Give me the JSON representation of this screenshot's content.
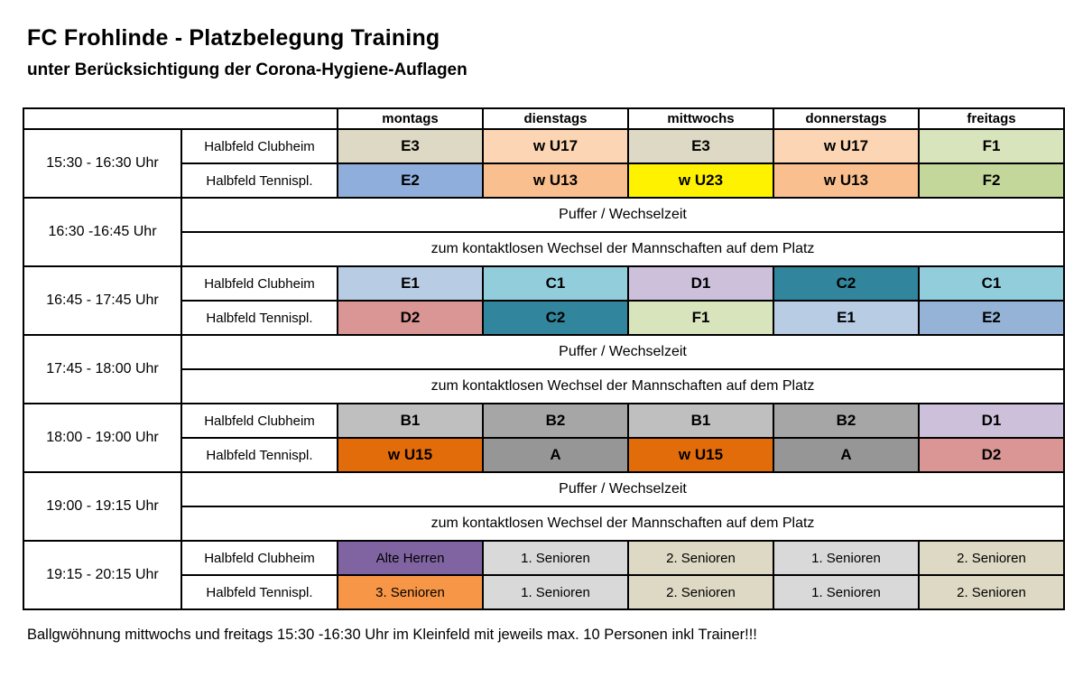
{
  "title": "FC Frohlinde - Platzbelegung Training",
  "subtitle": "unter Berücksichtigung der Corona-Hygiene-Auflagen",
  "footer": "Ballgwöhnung mittwochs und freitags 15:30 -16:30 Uhr im Kleinfeld mit jeweils max. 10 Personen inkl Trainer!!!",
  "days": [
    "montags",
    "dienstags",
    "mittwochs",
    "donnerstags",
    "freitags"
  ],
  "field_labels": [
    "Halbfeld Clubheim",
    "Halbfeld Tennispl."
  ],
  "puffer": {
    "line1": "Puffer / Wechselzeit",
    "line2": "zum kontaktlosen Wechsel der Mannschaften auf dem Platz"
  },
  "blocks": [
    {
      "type": "training",
      "bold": true,
      "time": "15:30 - 16:30 Uhr",
      "rows": [
        [
          {
            "label": "E3",
            "color": "#DDD9C4"
          },
          {
            "label": "w U17",
            "color": "#FCD5B4"
          },
          {
            "label": "E3",
            "color": "#DDD9C4"
          },
          {
            "label": "w U17",
            "color": "#FCD5B4"
          },
          {
            "label": "F1",
            "color": "#D8E4BC"
          }
        ],
        [
          {
            "label": "E2",
            "color": "#8FAEDC"
          },
          {
            "label": "w U13",
            "color": "#FABF8F"
          },
          {
            "label": "w U23",
            "color": "#FFF200"
          },
          {
            "label": "w U13",
            "color": "#FABF8F"
          },
          {
            "label": "F2",
            "color": "#C4D79B"
          }
        ]
      ]
    },
    {
      "type": "puffer",
      "time": "16:30 -16:45 Uhr"
    },
    {
      "type": "training",
      "bold": true,
      "time": "16:45 - 17:45 Uhr",
      "rows": [
        [
          {
            "label": "E1",
            "color": "#B8CCE4"
          },
          {
            "label": "C1",
            "color": "#92CDDC"
          },
          {
            "label": "D1",
            "color": "#CCC0DA"
          },
          {
            "label": "C2",
            "color": "#31859C"
          },
          {
            "label": "C1",
            "color": "#92CDDC"
          }
        ],
        [
          {
            "label": "D2",
            "color": "#D99694"
          },
          {
            "label": "C2",
            "color": "#31859C"
          },
          {
            "label": "F1",
            "color": "#D8E4BC"
          },
          {
            "label": "E1",
            "color": "#B8CCE4"
          },
          {
            "label": "E2",
            "color": "#95B3D7"
          }
        ]
      ]
    },
    {
      "type": "puffer",
      "time": "17:45 - 18:00 Uhr"
    },
    {
      "type": "training",
      "bold": true,
      "time": "18:00 - 19:00 Uhr",
      "rows": [
        [
          {
            "label": "B1",
            "color": "#BFBFBF"
          },
          {
            "label": "B2",
            "color": "#A6A6A6"
          },
          {
            "label": "B1",
            "color": "#BFBFBF"
          },
          {
            "label": "B2",
            "color": "#A6A6A6"
          },
          {
            "label": "D1",
            "color": "#CCC0DA"
          }
        ],
        [
          {
            "label": "w U15",
            "color": "#E36C0A"
          },
          {
            "label": "A",
            "color": "#969696"
          },
          {
            "label": "w U15",
            "color": "#E36C0A"
          },
          {
            "label": "A",
            "color": "#969696"
          },
          {
            "label": "D2",
            "color": "#D99694"
          }
        ]
      ]
    },
    {
      "type": "puffer",
      "time": "19:00 - 19:15 Uhr"
    },
    {
      "type": "training",
      "bold": false,
      "time": "19:15 - 20:15 Uhr",
      "rows": [
        [
          {
            "label": "Alte Herren",
            "color": "#8064A2"
          },
          {
            "label": "1. Senioren",
            "color": "#D9D9D9"
          },
          {
            "label": "2. Senioren",
            "color": "#DDD9C4"
          },
          {
            "label": "1. Senioren",
            "color": "#D9D9D9"
          },
          {
            "label": "2. Senioren",
            "color": "#DDD9C4"
          }
        ],
        [
          {
            "label": "3. Senioren",
            "color": "#F79646"
          },
          {
            "label": "1. Senioren",
            "color": "#D9D9D9"
          },
          {
            "label": "2. Senioren",
            "color": "#DDD9C4"
          },
          {
            "label": "1. Senioren",
            "color": "#D9D9D9"
          },
          {
            "label": "2. Senioren",
            "color": "#DDD9C4"
          }
        ]
      ]
    }
  ]
}
